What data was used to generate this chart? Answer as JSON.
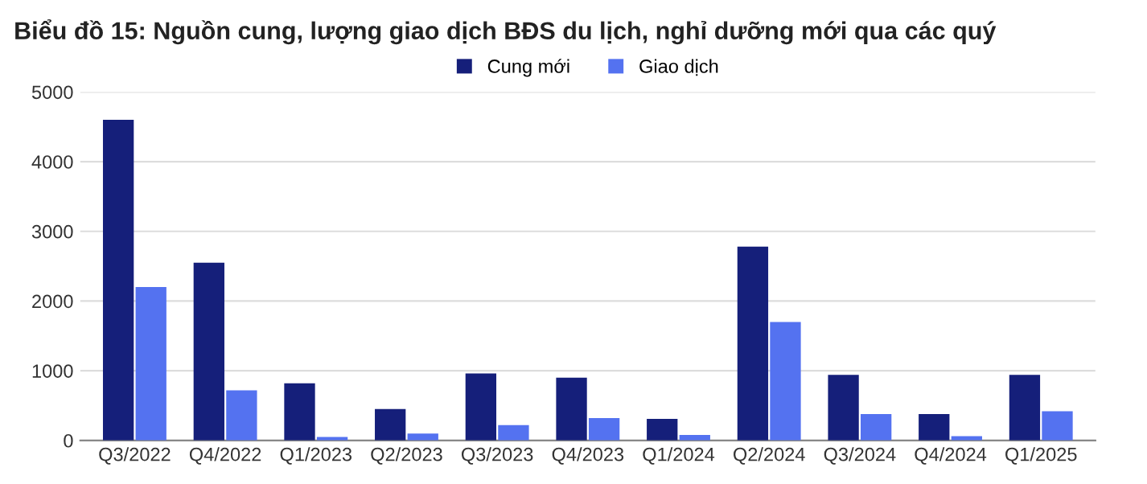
{
  "chart_data": {
    "type": "bar",
    "title": "Biểu đồ 15: Nguồn cung, lượng giao dịch BĐS du lịch, nghỉ dưỡng mới qua các quý",
    "categories": [
      "Q3/2022",
      "Q4/2022",
      "Q1/2023",
      "Q2/2023",
      "Q3/2023",
      "Q4/2023",
      "Q1/2024",
      "Q2/2024",
      "Q3/2024",
      "Q4/2024",
      "Q1/2025"
    ],
    "series": [
      {
        "name": "Cung mới",
        "color": "#151f7a",
        "values": [
          4600,
          2550,
          820,
          450,
          960,
          900,
          310,
          2780,
          940,
          380,
          940
        ]
      },
      {
        "name": "Giao dịch",
        "color": "#5472f0",
        "values": [
          2200,
          720,
          50,
          100,
          220,
          320,
          80,
          1700,
          380,
          60,
          420
        ]
      }
    ],
    "ylim": [
      0,
      5000
    ],
    "yticks": [
      0,
      1000,
      2000,
      3000,
      4000,
      5000
    ],
    "grid": "y",
    "legend": "top"
  }
}
